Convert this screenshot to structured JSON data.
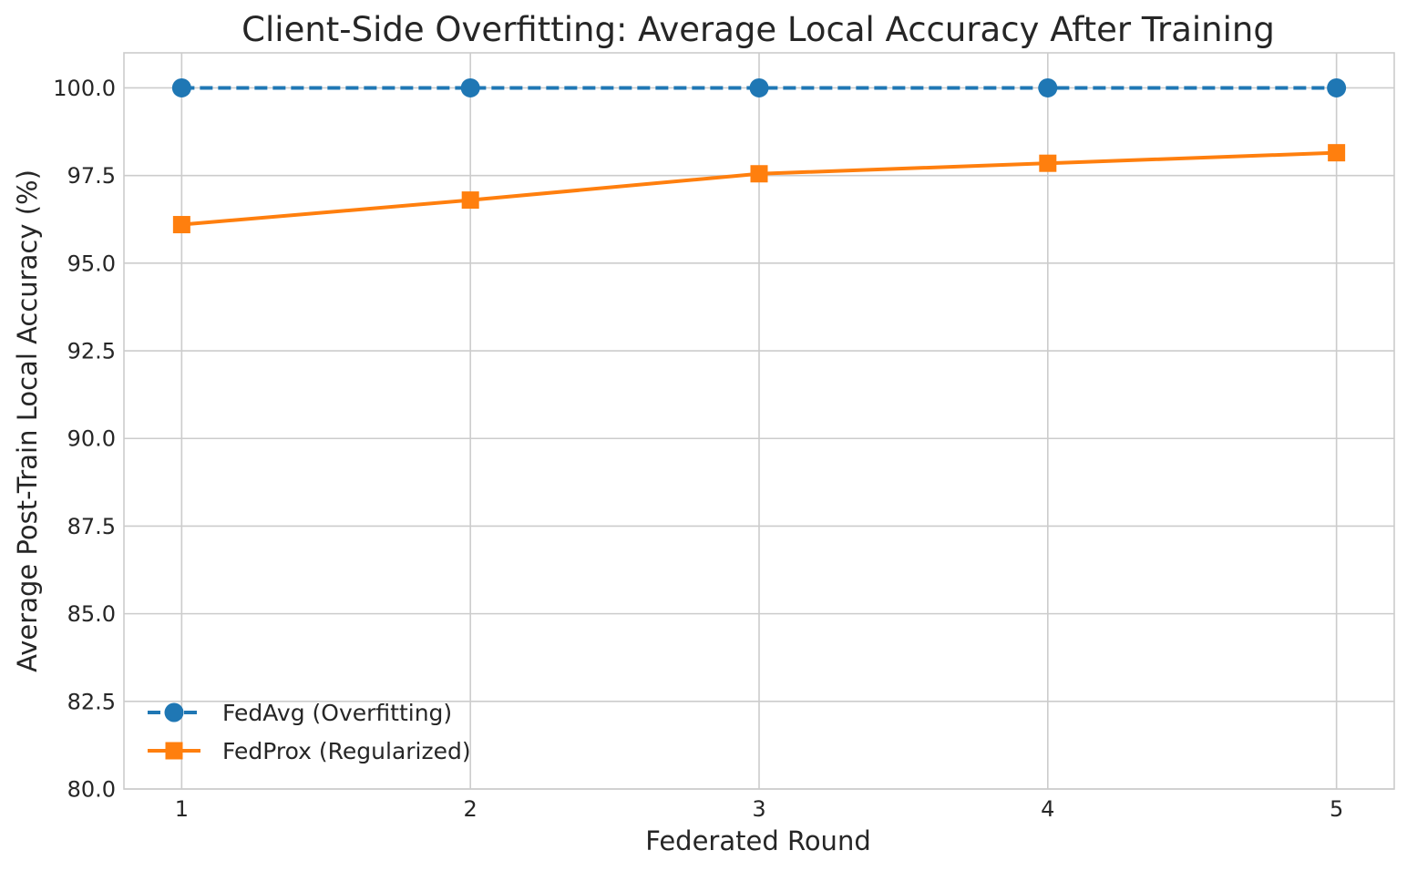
{
  "chart_data": {
    "type": "line",
    "title": "Client-Side Overfitting: Average Local Accuracy After Training",
    "xlabel": "Federated Round",
    "ylabel": "Average Post-Train Local Accuracy (%)",
    "x": [
      1,
      2,
      3,
      4,
      5
    ],
    "x_tick_labels": [
      "1",
      "2",
      "3",
      "4",
      "5"
    ],
    "ylim": [
      80.0,
      101.0
    ],
    "y_ticks": [
      80.0,
      82.5,
      85.0,
      87.5,
      90.0,
      92.5,
      95.0,
      97.5,
      100.0
    ],
    "y_tick_labels": [
      "80.0",
      "82.5",
      "85.0",
      "87.5",
      "90.0",
      "92.5",
      "95.0",
      "97.5",
      "100.0"
    ],
    "grid": true,
    "legend_position": "lower-left",
    "series": [
      {
        "name": "FedAvg (Overfitting)",
        "values": [
          100.0,
          100.0,
          100.0,
          100.0,
          100.0
        ],
        "color": "#1f77b4",
        "line_style": "dashed",
        "marker": "circle"
      },
      {
        "name": "FedProx (Regularized)",
        "values": [
          96.1,
          96.8,
          97.55,
          97.85,
          98.15
        ],
        "color": "#ff7f0e",
        "line_style": "solid",
        "marker": "square"
      }
    ]
  }
}
